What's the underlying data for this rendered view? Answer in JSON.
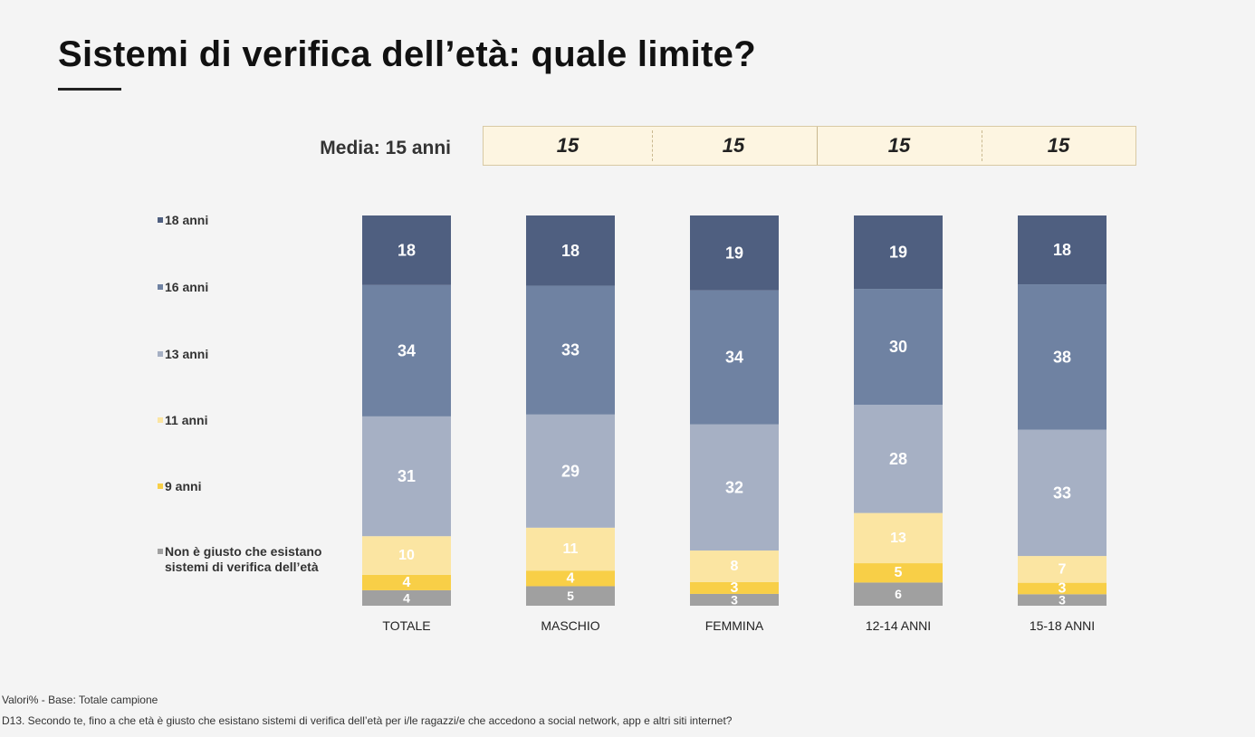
{
  "title": "Sistemi di verifica dell’età: quale limite?",
  "media": {
    "label": "Media: 15 anni",
    "values": [
      "15",
      "15",
      "15",
      "15"
    ]
  },
  "colors": {
    "18 anni": "#4f5f80",
    "16 anni": "#6f82a2",
    "13 anni": "#a6b0c4",
    "11 anni": "#fbe5a2",
    "9 anni": "#f8cf47",
    "Non è giusto che esistano sistemi di verifica dell’età": "#a0a0a0"
  },
  "chart_data": {
    "type": "bar",
    "stacked": true,
    "categories": [
      "TOTALE",
      "MASCHIO",
      "FEMMINA",
      "12-14 ANNI",
      "15-18 ANNI"
    ],
    "series": [
      {
        "name": "Non è giusto che esistano sistemi di verifica dell’età",
        "values": [
          4,
          5,
          3,
          6,
          3
        ]
      },
      {
        "name": "9 anni",
        "values": [
          4,
          4,
          3,
          5,
          3
        ]
      },
      {
        "name": "11 anni",
        "values": [
          10,
          11,
          8,
          13,
          7
        ]
      },
      {
        "name": "13 anni",
        "values": [
          31,
          29,
          32,
          28,
          33
        ]
      },
      {
        "name": "16 anni",
        "values": [
          34,
          33,
          34,
          30,
          38
        ]
      },
      {
        "name": "18 anni",
        "values": [
          18,
          18,
          19,
          19,
          18
        ]
      }
    ],
    "legend": [
      "18 anni",
      "16 anni",
      "13 anni",
      "11 anni",
      "9 anni",
      "Non è giusto che esistano sistemi di verifica dell’età"
    ],
    "legend_position": "left",
    "grid": false
  },
  "footnotes": {
    "base": "Valori% - Base: Totale campione",
    "question": "D13. Secondo te, fino a che età è giusto che esistano sistemi di verifica dell’età per i/le ragazzi/e che accedono a social network, app e altri siti internet?"
  }
}
